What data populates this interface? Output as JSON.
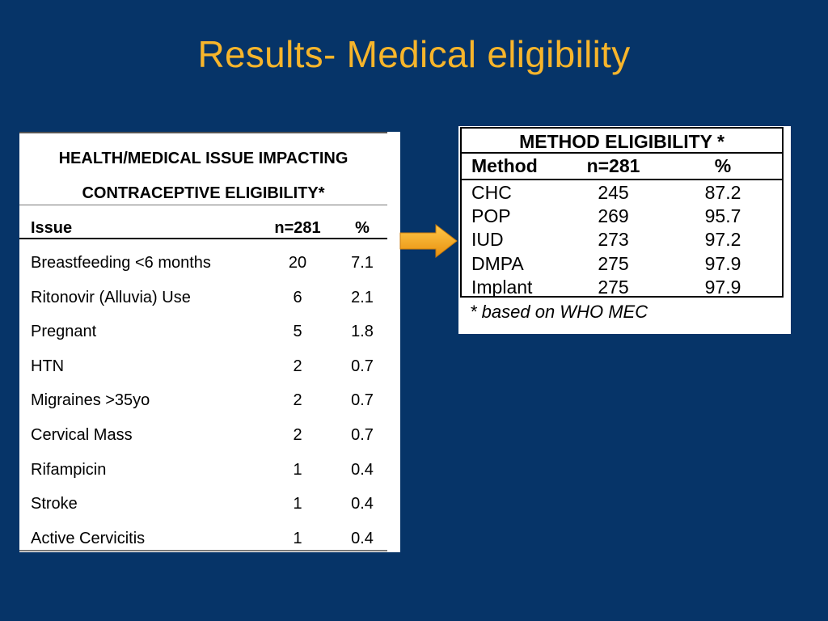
{
  "slide": {
    "title": "Results- Medical eligibility"
  },
  "issue_table": {
    "title_line1": "HEALTH/MEDICAL ISSUE IMPACTING",
    "title_line2": "CONTRACEPTIVE ELIGIBILITY*",
    "columns": {
      "issue": "Issue",
      "n": "n=281",
      "pct": "%"
    },
    "rows": [
      {
        "issue": "Breastfeeding <6 months",
        "n": "20",
        "pct": "7.1"
      },
      {
        "issue": "Ritonovir (Alluvia) Use",
        "n": "6",
        "pct": "2.1"
      },
      {
        "issue": "Pregnant",
        "n": "5",
        "pct": "1.8"
      },
      {
        "issue": "HTN",
        "n": "2",
        "pct": "0.7"
      },
      {
        "issue": "Migraines >35yo",
        "n": "2",
        "pct": "0.7"
      },
      {
        "issue": "Cervical Mass",
        "n": "2",
        "pct": "0.7"
      },
      {
        "issue": "Rifampicin",
        "n": "1",
        "pct": "0.4"
      },
      {
        "issue": "Stroke",
        "n": "1",
        "pct": "0.4"
      },
      {
        "issue": "Active Cervicitis",
        "n": "1",
        "pct": "0.4"
      }
    ]
  },
  "arrow": {
    "icon": "right-arrow-icon",
    "color": "#F5A623"
  },
  "method_table": {
    "title": "METHOD ELIGIBILITY *",
    "columns": {
      "method": "Method",
      "n": "n=281",
      "pct": "%"
    },
    "rows": [
      {
        "method": "CHC",
        "n": "245",
        "pct": "87.2"
      },
      {
        "method": "POP",
        "n": "269",
        "pct": "95.7"
      },
      {
        "method": "IUD",
        "n": "273",
        "pct": "97.2"
      },
      {
        "method": "DMPA",
        "n": "275",
        "pct": "97.9"
      },
      {
        "method": "Implant",
        "n": "275",
        "pct": "97.9"
      }
    ],
    "footnote": "* based on WHO MEC"
  }
}
